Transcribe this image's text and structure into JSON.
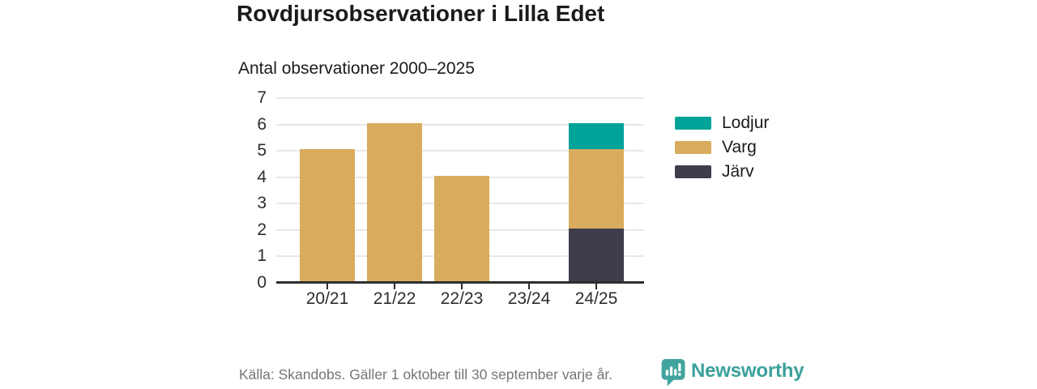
{
  "chart_data": {
    "type": "bar",
    "stacked": true,
    "title": "Rovdjursobservationer i Lilla Edet",
    "subtitle": "Antal observationer 2000–2025",
    "categories": [
      "20/21",
      "21/22",
      "22/23",
      "23/24",
      "24/25"
    ],
    "series": [
      {
        "name": "Lodjur",
        "color": "#00A398",
        "values": [
          0,
          0,
          0,
          0,
          1
        ]
      },
      {
        "name": "Varg",
        "color": "#D9AC5D",
        "values": [
          5,
          6,
          4,
          0,
          3
        ]
      },
      {
        "name": "Järv",
        "color": "#3F3C4C",
        "values": [
          0,
          0,
          0,
          0,
          2
        ]
      }
    ],
    "stack_order_bottom_to_top": [
      "Järv",
      "Varg",
      "Lodjur"
    ],
    "ylim": [
      0,
      7
    ],
    "yticks": [
      0,
      1,
      2,
      3,
      4,
      5,
      6,
      7
    ],
    "grid": true,
    "legend_position": "right"
  },
  "footer": {
    "source": "Källa: Skandobs. Gäller 1 oktober till 30 september varje år.",
    "brand": "Newsworthy"
  },
  "colors": {
    "grid": "#E8E8E8",
    "axis": "#2E2E2E",
    "brand_teal": "#3AA19A",
    "logo_teal": "#41A49E",
    "text": "#1B1B1B",
    "muted": "#757578"
  }
}
